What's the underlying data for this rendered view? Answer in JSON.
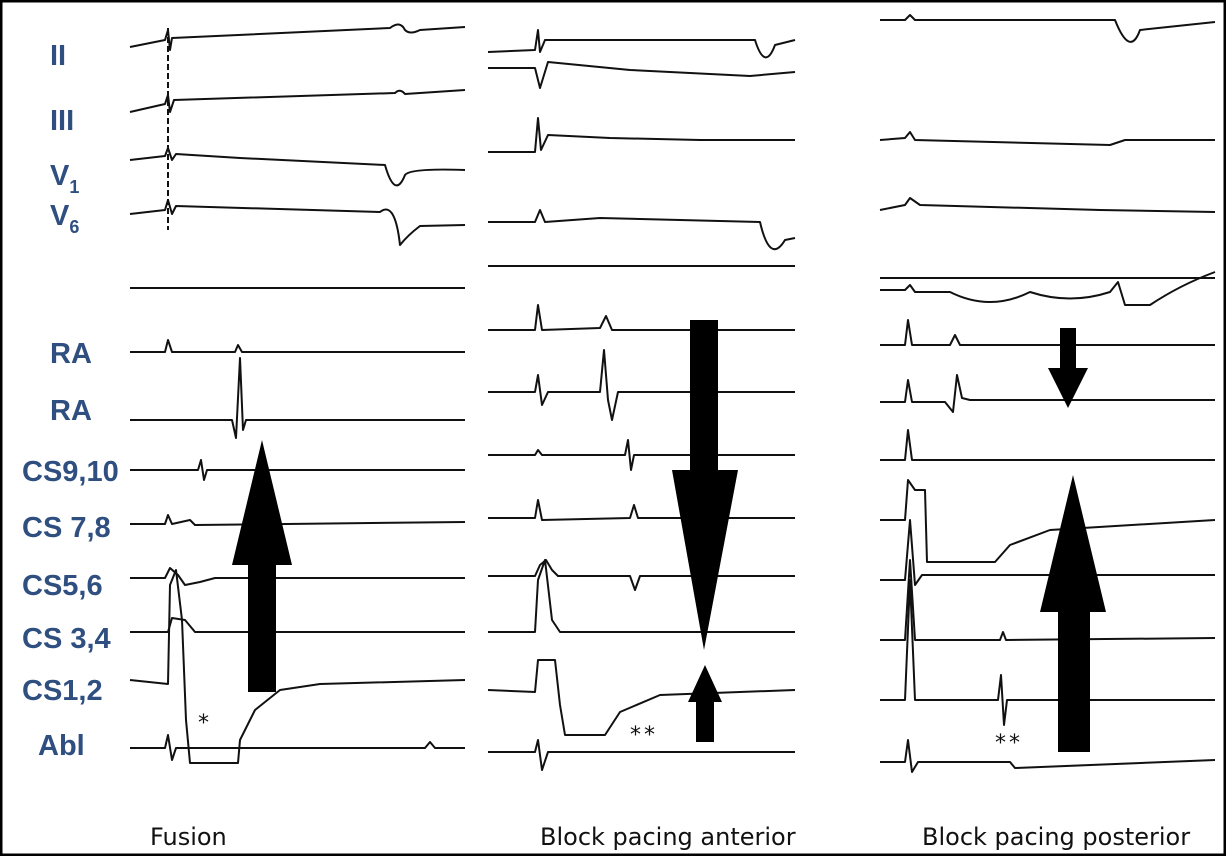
{
  "leads": [
    {
      "main": "II"
    },
    {
      "main": "III"
    },
    {
      "main": "V",
      "sub": "1"
    },
    {
      "main": "V",
      "sub": "6"
    },
    {
      "main": "RA"
    },
    {
      "main": "RA"
    },
    {
      "main": "CS9,10"
    },
    {
      "main": "CS 7,8"
    },
    {
      "main": "CS5,6"
    },
    {
      "main": "CS 3,4"
    },
    {
      "main": "CS1,2"
    },
    {
      "main": "Abl"
    }
  ],
  "panels": [
    {
      "caption": "Fusion",
      "annotation": "*"
    },
    {
      "caption": "Block pacing anterior",
      "annotation": "**"
    },
    {
      "caption": "Block pacing posterior",
      "annotation": "**"
    }
  ]
}
